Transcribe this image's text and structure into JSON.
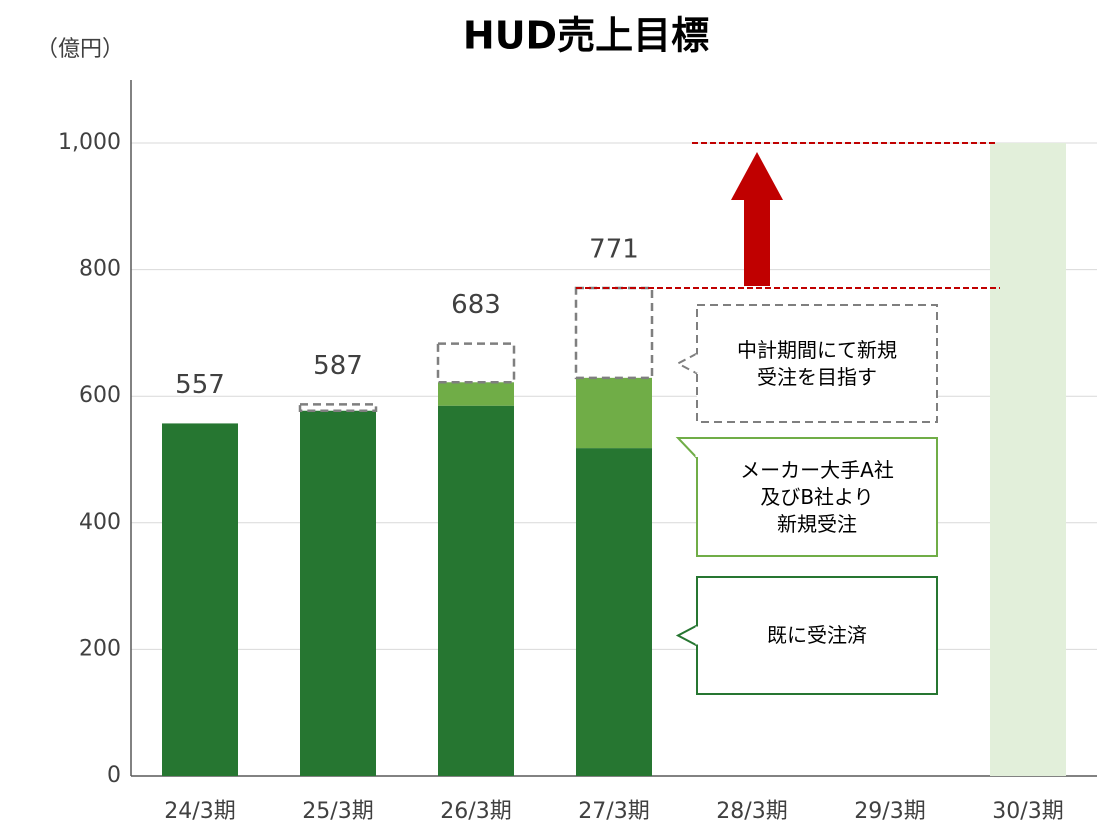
{
  "chart_data": {
    "type": "stacked_bar",
    "title": "HUD売上目標",
    "y_unit": "（億円）",
    "categories": [
      "24/3期",
      "25/3期",
      "26/3期",
      "27/3期",
      "28/3期",
      "29/3期",
      "30/3期"
    ],
    "series": [
      {
        "name": "既に受注済",
        "color": "#267631",
        "values": [
          557,
          577,
          585,
          518,
          null,
          null,
          null
        ]
      },
      {
        "name": "メーカー大手A社\n及びB社より\n新規受注",
        "color": "#70ad47",
        "values": [
          null,
          null,
          37,
          111,
          null,
          null,
          null
        ]
      },
      {
        "name": "中計期間にて新規\n受注を目指す",
        "color": "#7f7f7f",
        "dashed": true,
        "values": [
          null,
          10,
          61,
          142,
          null,
          null,
          null
        ]
      },
      {
        "color": "#e2efda",
        "values": [
          null,
          null,
          null,
          null,
          null,
          null,
          1000
        ]
      }
    ],
    "totals": [
      557,
      587,
      683,
      771,
      null,
      null,
      null
    ],
    "reference_lines": [
      771,
      1000
    ],
    "reference_color": "#c00000",
    "ylim": [
      0,
      1000
    ],
    "yticks": [
      0,
      200,
      400,
      600,
      800,
      {
        "value": 1000,
        "label": "1,000"
      }
    ],
    "grid": true
  }
}
